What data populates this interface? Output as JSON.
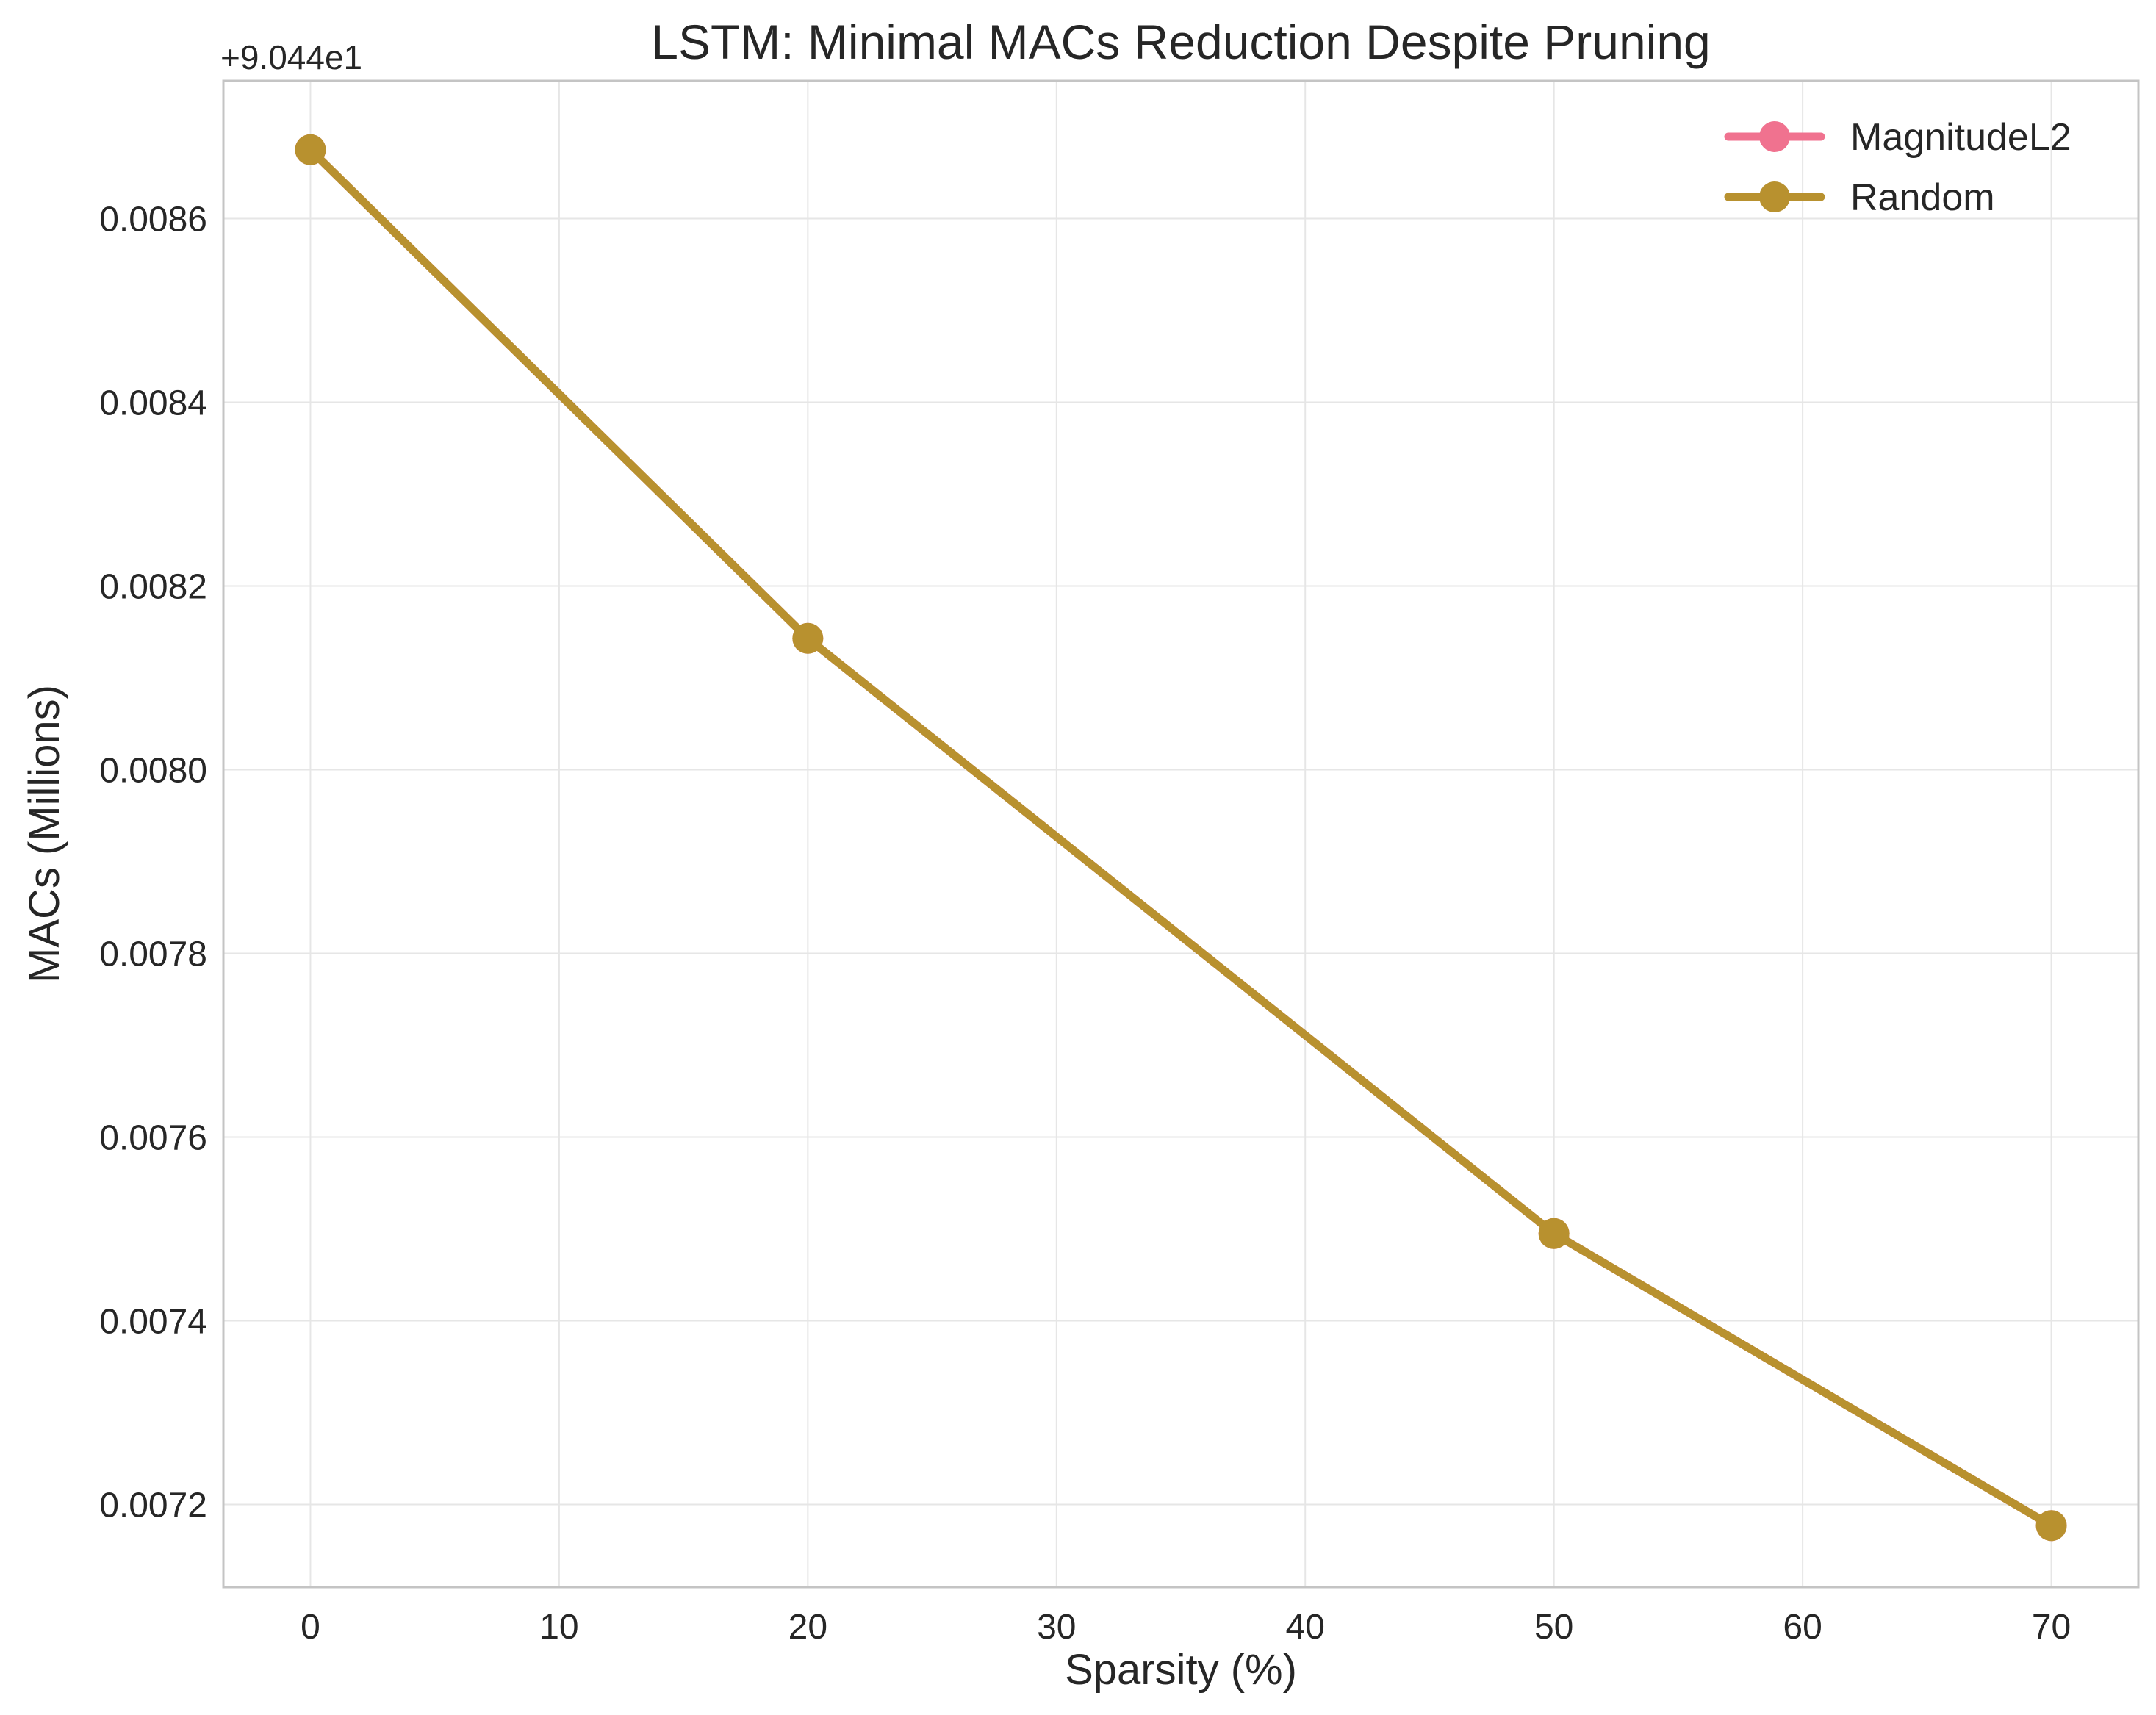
{
  "chart_data": {
    "type": "line",
    "title": "LSTM: Minimal MACs Reduction Despite Pruning",
    "xlabel": "Sparsity (%)",
    "ylabel": "MACs (Millions)",
    "y_offset_text": "+9.044e1",
    "y_offset": 90.44,
    "xlim": [
      -3.5,
      73.5
    ],
    "ylim": [
      0.00711,
      0.00875
    ],
    "x_ticks": [
      0,
      10,
      20,
      30,
      40,
      50,
      60,
      70
    ],
    "x_tick_labels": [
      "0",
      "10",
      "20",
      "30",
      "40",
      "50",
      "60",
      "70"
    ],
    "y_ticks": [
      0.0072,
      0.0074,
      0.0076,
      0.0078,
      0.008,
      0.0082,
      0.0084,
      0.0086
    ],
    "y_tick_labels": [
      "0.0072",
      "0.0074",
      "0.0076",
      "0.0078",
      "0.0080",
      "0.0082",
      "0.0084",
      "0.0086"
    ],
    "grid": true,
    "legend_position": "top-right",
    "x": [
      0,
      20,
      50,
      70
    ],
    "series": [
      {
        "name": "MagnitudeL2",
        "color": "#f0728f",
        "values": [
          0.008675,
          0.008143,
          0.007495,
          0.007177
        ]
      },
      {
        "name": "Random",
        "color": "#b8912f",
        "values": [
          0.008675,
          0.008143,
          0.007495,
          0.007177
        ]
      }
    ]
  }
}
